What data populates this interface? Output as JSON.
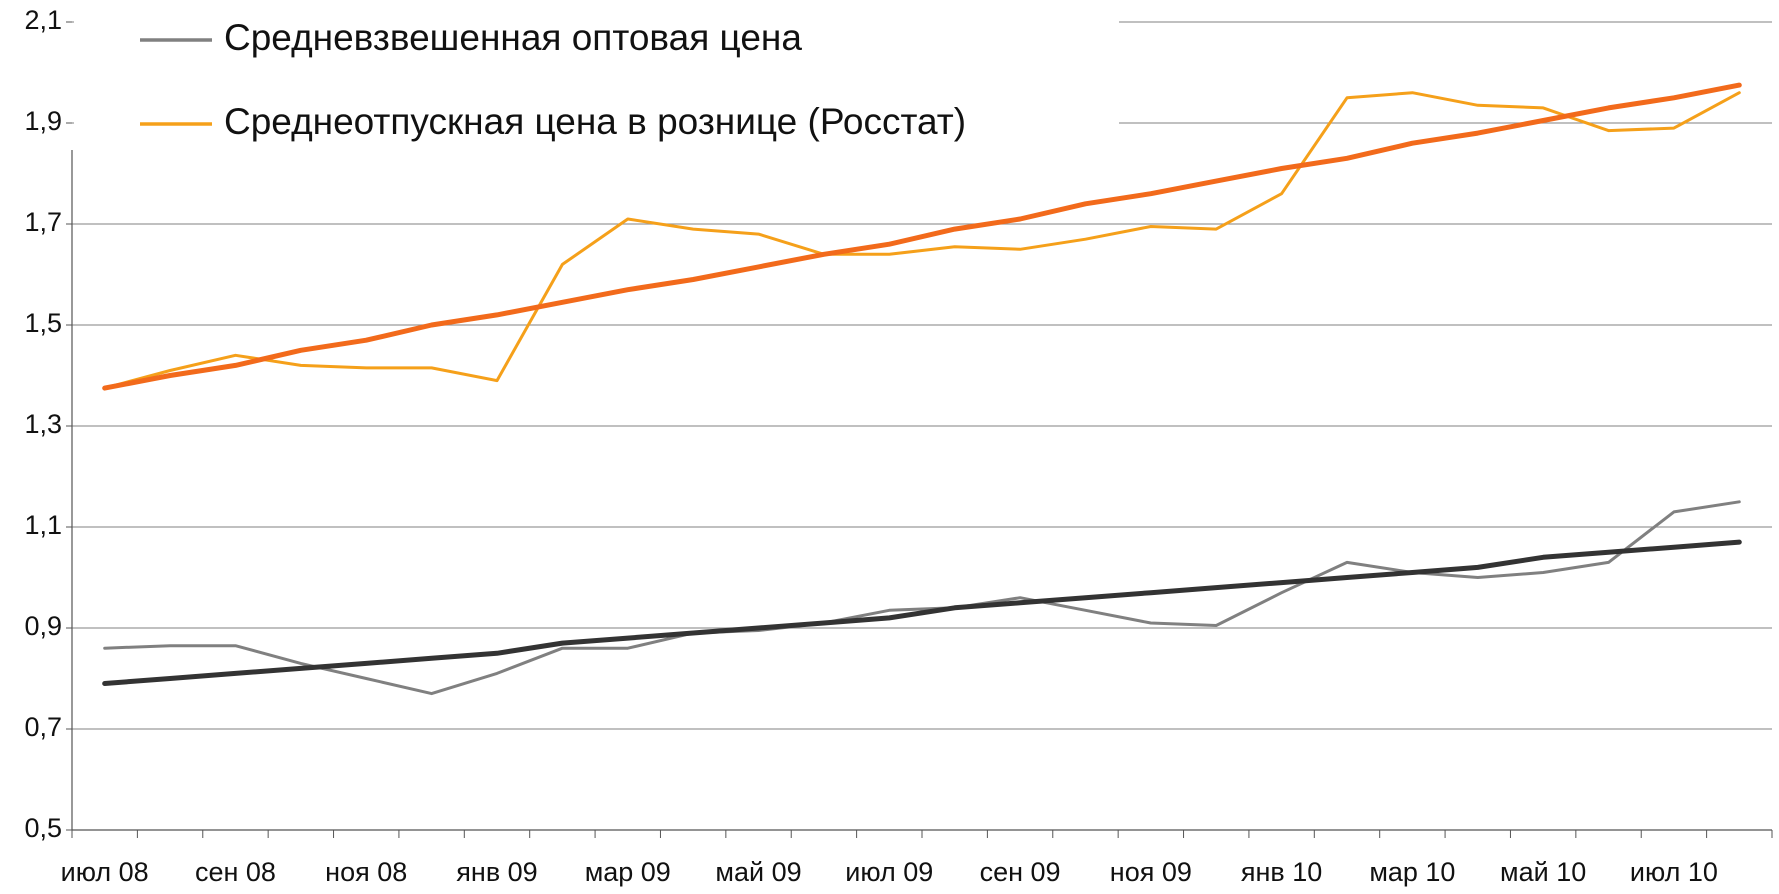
{
  "chart_data": {
    "type": "line",
    "categories": [
      "июл 08",
      null,
      "сен 08",
      null,
      "ноя 08",
      null,
      "янв 09",
      null,
      "мар 09",
      null,
      "май 09",
      null,
      "июл 09",
      null,
      "сен 09",
      null,
      "ноя 09",
      null,
      "янв 10",
      null,
      "мар 10",
      null,
      "май 10",
      null,
      "июл 10",
      null
    ],
    "series": [
      {
        "name": "Средневзвешенная оптовая цена",
        "color": "#808080",
        "values": [
          0.86,
          0.865,
          0.865,
          0.83,
          0.8,
          0.77,
          0.81,
          0.86,
          0.86,
          0.89,
          0.895,
          0.91,
          0.935,
          0.94,
          0.96,
          0.935,
          0.91,
          0.905,
          0.97,
          1.03,
          1.01,
          1.0,
          1.01,
          1.03,
          1.13,
          1.15
        ]
      },
      {
        "name": "Среднеотпускная цена в рознице (Росстат)",
        "color": "#f5a01a",
        "values": [
          1.375,
          1.41,
          1.44,
          1.42,
          1.415,
          1.415,
          1.39,
          1.62,
          1.71,
          1.69,
          1.68,
          1.64,
          1.64,
          1.655,
          1.65,
          1.67,
          1.695,
          1.69,
          1.76,
          1.95,
          1.96,
          1.935,
          1.93,
          1.885,
          1.89,
          1.96
        ]
      },
      {
        "color": "#333333",
        "values": [
          0.79,
          0.8,
          0.81,
          0.82,
          0.83,
          0.84,
          0.85,
          0.87,
          0.88,
          0.89,
          0.9,
          0.91,
          0.92,
          0.94,
          0.95,
          0.96,
          0.97,
          0.98,
          0.99,
          1.0,
          1.01,
          1.02,
          1.04,
          1.05,
          1.06,
          1.07
        ]
      },
      {
        "color": "#f26a1b",
        "values": [
          1.375,
          1.4,
          1.42,
          1.45,
          1.47,
          1.5,
          1.52,
          1.545,
          1.57,
          1.59,
          1.615,
          1.64,
          1.66,
          1.69,
          1.71,
          1.74,
          1.76,
          1.785,
          1.81,
          1.83,
          1.86,
          1.88,
          1.905,
          1.93,
          1.95,
          1.975
        ]
      }
    ],
    "ylim": [
      0.5,
      2.1
    ],
    "yticks": [
      {
        "value": 0.5,
        "label": "0,5"
      },
      {
        "value": 0.7,
        "label": "0,7"
      },
      {
        "value": 0.9,
        "label": "0,9"
      },
      {
        "value": 1.1,
        "label": "1,1"
      },
      {
        "value": 1.3,
        "label": "1,3"
      },
      {
        "value": 1.5,
        "label": "1,5"
      },
      {
        "value": 1.7,
        "label": "1,7"
      },
      {
        "value": 1.9,
        "label": "1,9"
      },
      {
        "value": 2.1,
        "label": "2,1"
      }
    ],
    "grid": true,
    "legend": "upper left"
  }
}
